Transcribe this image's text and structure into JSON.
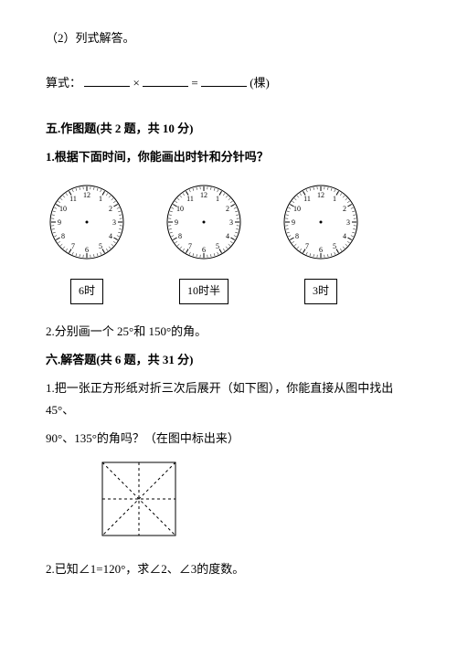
{
  "q2_label": "（2）列式解答。",
  "formula_prefix": "算式：",
  "formula_op": "×",
  "formula_eq": "=",
  "formula_unit": "(棵)",
  "section5_heading": "五.作图题(共 2 题，共 10 分)",
  "s5_q1": "1.根据下面时间，你能画出时针和分针吗？",
  "clocks": {
    "labels": [
      "6时",
      "10时半",
      "3时"
    ],
    "face": {
      "radius": 40,
      "tick_len_major": 5,
      "tick_len_minor": 3,
      "number_radius": 30,
      "number_fontsize": 8,
      "stroke": "#000000",
      "fill": "#ffffff"
    }
  },
  "s5_q2": "2.分别画一个 25°和 150°的角。",
  "section6_heading": "六.解答题(共 6 题，共 31 分)",
  "s6_q1_l1": "1.把一张正方形纸对折三次后展开（如下图），你能直接从图中找出 45°、",
  "s6_q1_l2": "90°、135°的角吗？（在图中标出来）",
  "square": {
    "size": 80,
    "stroke": "#000000",
    "dash": "3,3"
  },
  "s6_q2": "2.已知∠1=120°，求∠2、∠3的度数。",
  "blank_widths": {
    "a": 50,
    "b": 50,
    "c": 50
  }
}
